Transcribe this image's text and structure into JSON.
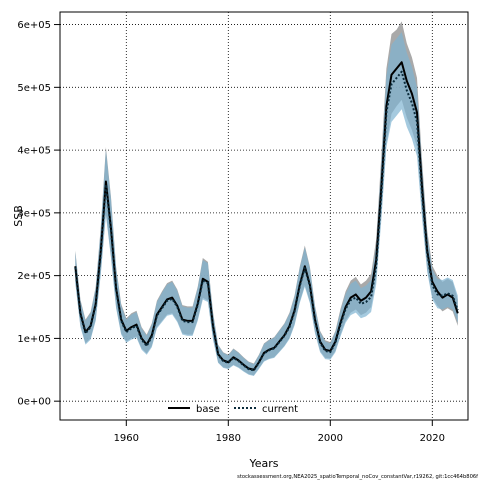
{
  "chart_data": {
    "type": "line",
    "title": "",
    "xlabel": "Years",
    "ylabel": "SSB",
    "xlim": [
      1947,
      2027
    ],
    "ylim": [
      -30000,
      620000
    ],
    "x_ticks": [
      1960,
      1980,
      2000,
      2020
    ],
    "x_tick_labels": [
      "1960",
      "1980",
      "2000",
      "2020"
    ],
    "y_ticks": [
      0,
      100000,
      200000,
      300000,
      400000,
      500000,
      600000
    ],
    "y_tick_labels": [
      "0e+00",
      "1e+05",
      "2e+05",
      "3e+05",
      "4e+05",
      "5e+05",
      "6e+05"
    ],
    "grid": true,
    "legend_position": "bottom",
    "footnote": "stockassessment.org,NEA2025_spatioTemporal_noCov_constantVar,r19262, git:1cc464b806f",
    "series": [
      {
        "name": "base",
        "color": "#000000",
        "band_color": "#9a9a9a",
        "line_style": "solid",
        "x": [
          1950,
          1951,
          1952,
          1953,
          1954,
          1955,
          1956,
          1957,
          1958,
          1959,
          1960,
          1961,
          1962,
          1963,
          1964,
          1965,
          1966,
          1967,
          1968,
          1969,
          1970,
          1971,
          1972,
          1973,
          1974,
          1975,
          1976,
          1977,
          1978,
          1979,
          1980,
          1981,
          1982,
          1983,
          1984,
          1985,
          1986,
          1987,
          1988,
          1989,
          1990,
          1991,
          1992,
          1993,
          1994,
          1995,
          1996,
          1997,
          1998,
          1999,
          2000,
          2001,
          2002,
          2003,
          2004,
          2005,
          2006,
          2007,
          2008,
          2009,
          2010,
          2011,
          2012,
          2013,
          2014,
          2015,
          2016,
          2017,
          2018,
          2019,
          2020,
          2021,
          2022,
          2023,
          2024,
          2025
        ],
        "y": [
          215000,
          140000,
          110000,
          120000,
          155000,
          240000,
          350000,
          275000,
          180000,
          130000,
          112000,
          118000,
          122000,
          100000,
          90000,
          105000,
          138000,
          150000,
          162000,
          165000,
          152000,
          130000,
          128000,
          128000,
          155000,
          195000,
          190000,
          120000,
          75000,
          65000,
          62000,
          70000,
          65000,
          58000,
          52000,
          50000,
          62000,
          77000,
          82000,
          85000,
          95000,
          105000,
          120000,
          145000,
          185000,
          215000,
          185000,
          130000,
          95000,
          82000,
          80000,
          95000,
          125000,
          150000,
          165000,
          170000,
          160000,
          165000,
          175000,
          225000,
          340000,
          470000,
          520000,
          530000,
          540000,
          510000,
          490000,
          460000,
          340000,
          240000,
          190000,
          175000,
          165000,
          170000,
          165000,
          140000
        ],
        "lower": [
          190000,
          120000,
          92000,
          100000,
          130000,
          205000,
          300000,
          230000,
          150000,
          108000,
          95000,
          100000,
          103000,
          84000,
          76000,
          88000,
          118000,
          128000,
          138000,
          140000,
          128000,
          108000,
          106000,
          106000,
          130000,
          165000,
          160000,
          100000,
          62000,
          54000,
          52000,
          58000,
          54000,
          48000,
          43000,
          41000,
          52000,
          64000,
          68000,
          70000,
          79000,
          88000,
          101000,
          123000,
          158000,
          185000,
          158000,
          110000,
          80000,
          69000,
          68000,
          80000,
          106000,
          128000,
          141000,
          146000,
          137000,
          141000,
          150000,
          195000,
          295000,
          410000,
          458000,
          470000,
          480000,
          452000,
          432000,
          405000,
          298000,
          210000,
          166000,
          152000,
          143000,
          148000,
          143000,
          120000
        ],
        "upper": [
          240000,
          162000,
          130000,
          142000,
          182000,
          278000,
          405000,
          325000,
          214000,
          155000,
          132000,
          140000,
          144000,
          118000,
          106000,
          124000,
          160000,
          175000,
          188000,
          192000,
          178000,
          153000,
          151000,
          151000,
          182000,
          228000,
          222000,
          142000,
          90000,
          78000,
          74000,
          84000,
          78000,
          70000,
          63000,
          60000,
          74000,
          92000,
          98000,
          102000,
          113000,
          124000,
          141000,
          169000,
          214000,
          248000,
          214000,
          152000,
          112000,
          97000,
          94000,
          112000,
          147000,
          175000,
          192000,
          198000,
          186000,
          192000,
          203000,
          258000,
          390000,
          530000,
          585000,
          592000,
          605000,
          570000,
          548000,
          515000,
          382000,
          272000,
          216000,
          200000,
          190000,
          195000,
          190000,
          162000
        ]
      },
      {
        "name": "current",
        "color": "#0a2a3a",
        "band_color": "#7fb4d2",
        "line_style": "dotted",
        "x": [
          1950,
          1951,
          1952,
          1953,
          1954,
          1955,
          1956,
          1957,
          1958,
          1959,
          1960,
          1961,
          1962,
          1963,
          1964,
          1965,
          1966,
          1967,
          1968,
          1969,
          1970,
          1971,
          1972,
          1973,
          1974,
          1975,
          1976,
          1977,
          1978,
          1979,
          1980,
          1981,
          1982,
          1983,
          1984,
          1985,
          1986,
          1987,
          1988,
          1989,
          1990,
          1991,
          1992,
          1993,
          1994,
          1995,
          1996,
          1997,
          1998,
          1999,
          2000,
          2001,
          2002,
          2003,
          2004,
          2005,
          2006,
          2007,
          2008,
          2009,
          2010,
          2011,
          2012,
          2013,
          2014,
          2015,
          2016,
          2017,
          2018,
          2019,
          2020,
          2021,
          2022,
          2023,
          2024,
          2025
        ],
        "y": [
          213000,
          138000,
          108000,
          118000,
          153000,
          237000,
          345000,
          272000,
          178000,
          128000,
          110000,
          116000,
          120000,
          98000,
          88000,
          103000,
          136000,
          148000,
          160000,
          163000,
          150000,
          128000,
          126000,
          126000,
          153000,
          192000,
          188000,
          118000,
          74000,
          64000,
          61000,
          69000,
          64000,
          57000,
          51000,
          49000,
          61000,
          76000,
          81000,
          84000,
          94000,
          104000,
          118000,
          143000,
          183000,
          212000,
          183000,
          128000,
          93000,
          80000,
          78000,
          93000,
          122000,
          147000,
          161000,
          165000,
          155000,
          158000,
          166000,
          215000,
          330000,
          460000,
          505000,
          515000,
          525000,
          495000,
          475000,
          445000,
          330000,
          235000,
          185000,
          170000,
          168000,
          172000,
          168000,
          145000
        ],
        "lower": [
          188000,
          118000,
          90000,
          98000,
          128000,
          202000,
          296000,
          228000,
          148000,
          106000,
          93000,
          98000,
          101000,
          82000,
          74000,
          86000,
          116000,
          126000,
          136000,
          138000,
          126000,
          106000,
          104000,
          104000,
          128000,
          162000,
          158000,
          98000,
          61000,
          53000,
          51000,
          57000,
          53000,
          47000,
          42000,
          40000,
          51000,
          63000,
          67000,
          69000,
          78000,
          87000,
          99000,
          121000,
          156000,
          182000,
          156000,
          108000,
          78000,
          67000,
          66000,
          78000,
          103000,
          125000,
          137000,
          141000,
          132000,
          135000,
          142000,
          186000,
          288000,
          405000,
          445000,
          455000,
          465000,
          437000,
          418000,
          390000,
          290000,
          206000,
          162000,
          148000,
          146000,
          150000,
          146000,
          125000
        ],
        "upper": [
          238000,
          160000,
          128000,
          140000,
          180000,
          275000,
          400000,
          322000,
          212000,
          152000,
          130000,
          138000,
          142000,
          116000,
          104000,
          122000,
          158000,
          173000,
          186000,
          190000,
          176000,
          151000,
          149000,
          149000,
          180000,
          225000,
          220000,
          140000,
          89000,
          77000,
          73000,
          83000,
          77000,
          69000,
          62000,
          59000,
          73000,
          91000,
          97000,
          101000,
          112000,
          123000,
          139000,
          167000,
          212000,
          245000,
          212000,
          150000,
          110000,
          95000,
          92000,
          110000,
          143000,
          171000,
          187000,
          192000,
          180000,
          184000,
          193000,
          248000,
          378000,
          518000,
          568000,
          578000,
          588000,
          555000,
          533000,
          500000,
          372000,
          266000,
          210000,
          195000,
          193000,
          197000,
          193000,
          168000
        ]
      }
    ]
  }
}
